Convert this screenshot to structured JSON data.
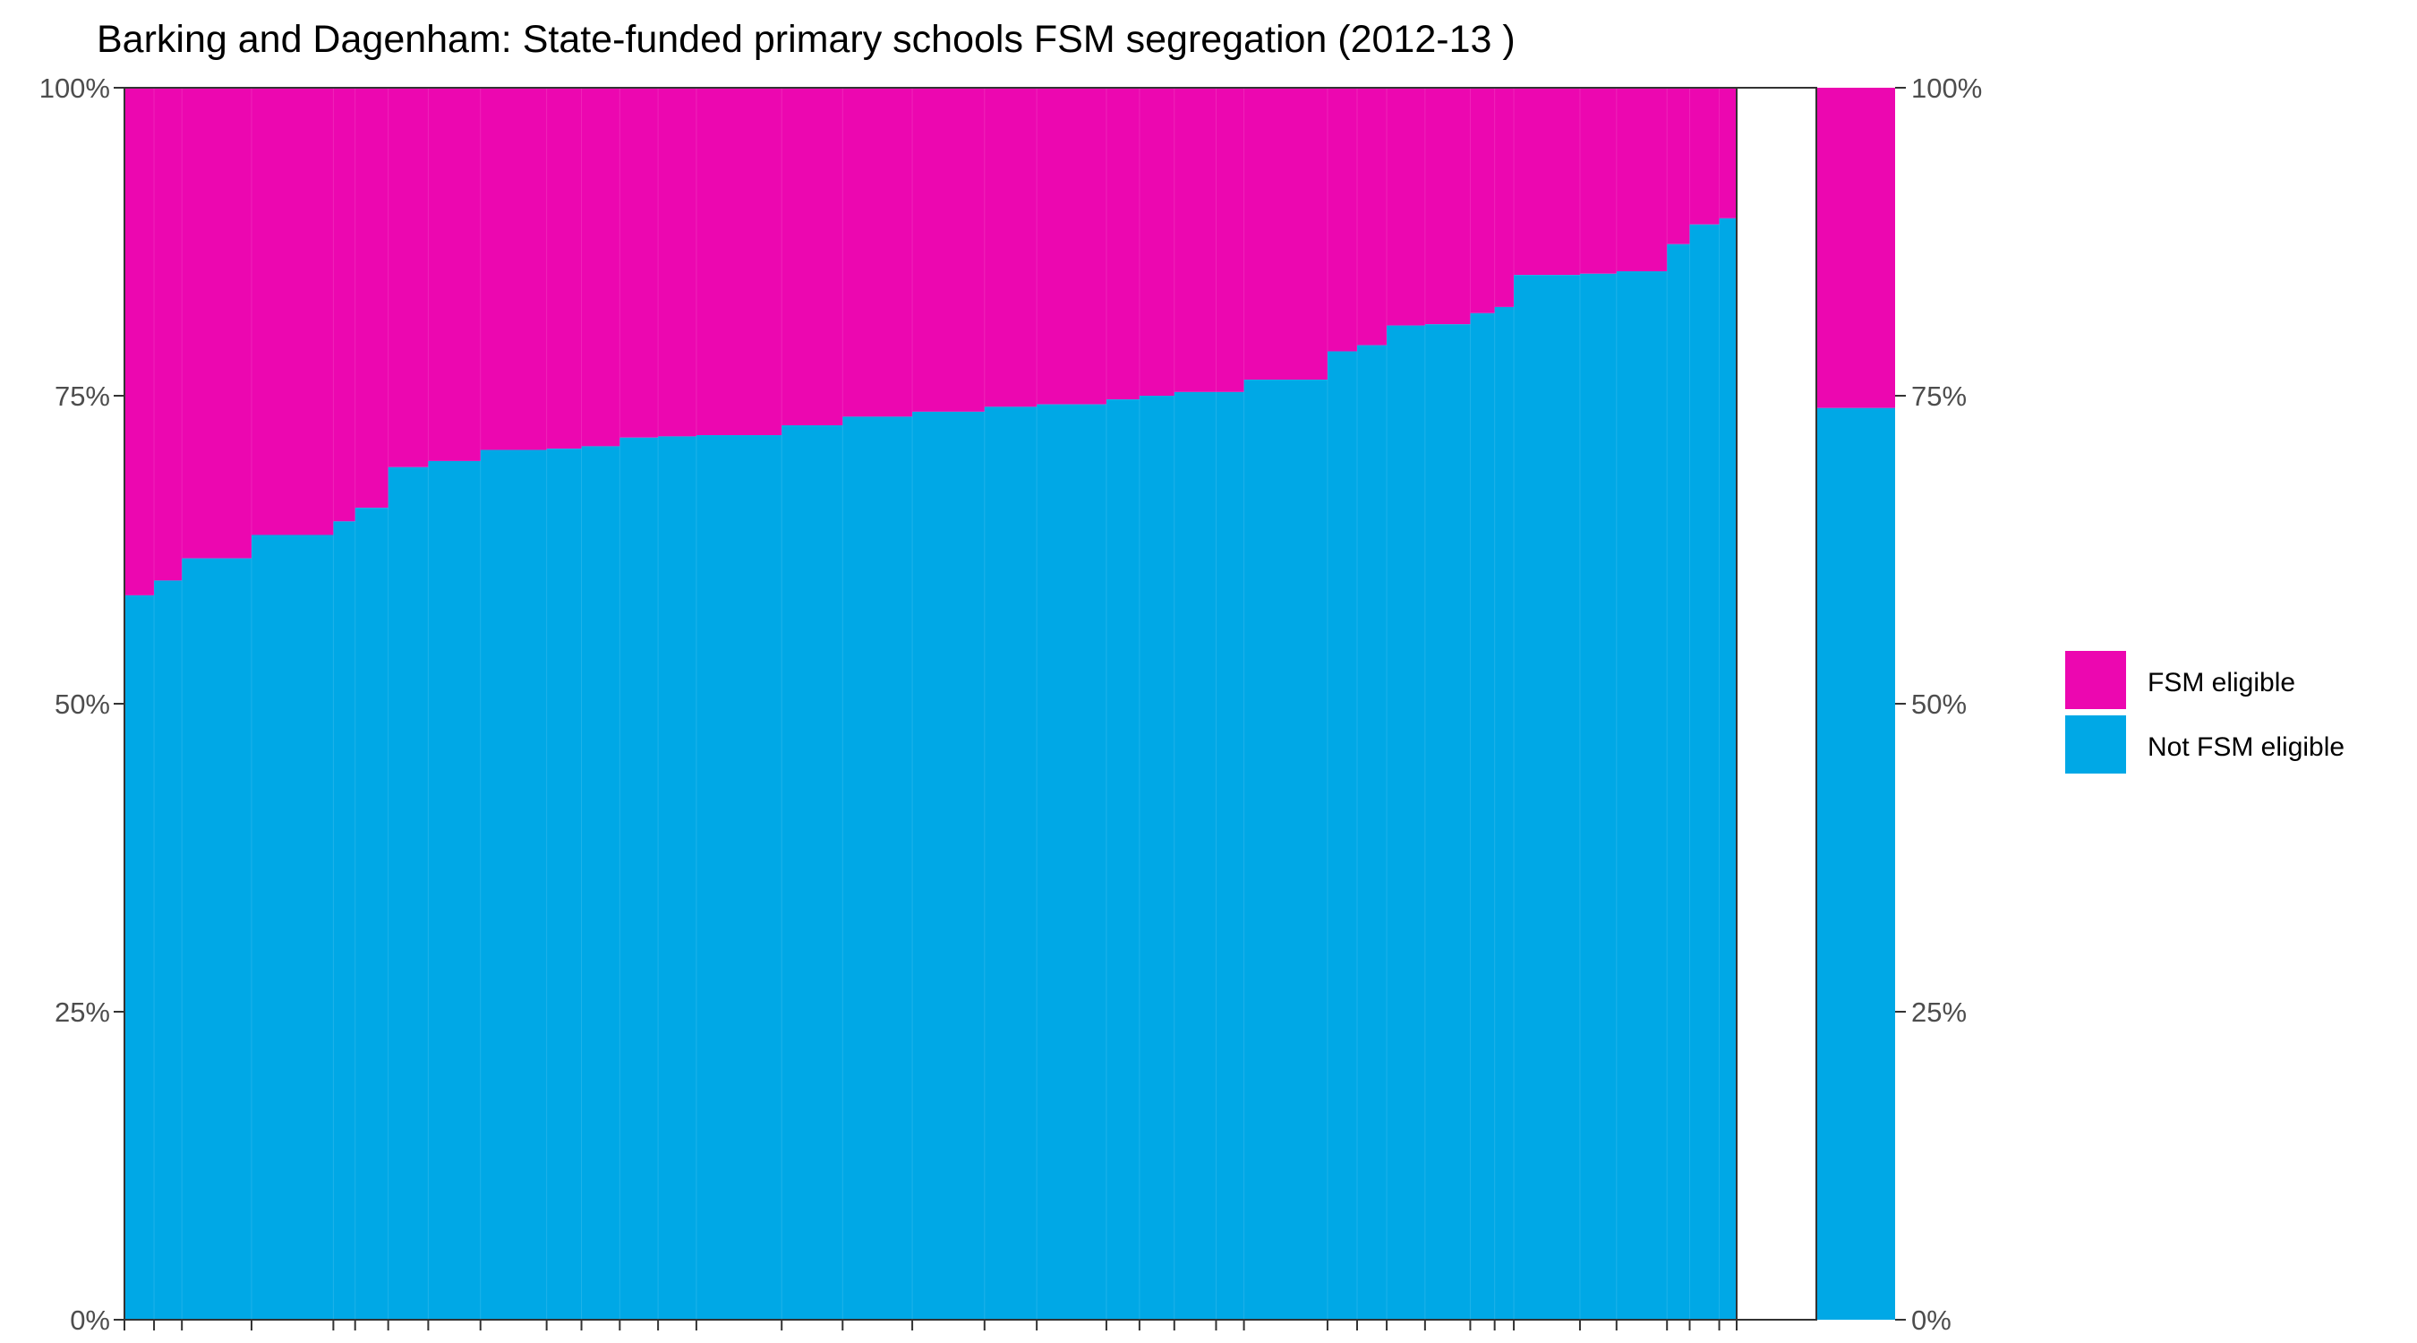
{
  "chart_data": {
    "type": "bar",
    "subtype": "variable-width stacked 100% bar (segregation chart)",
    "title": "Barking and Dagenham: State-funded primary schools FSM segregation (2012-13 )",
    "xlabel": "",
    "ylabel": "",
    "ylim": [
      0,
      1
    ],
    "y_ticks": [
      "0%",
      "25%",
      "50%",
      "75%",
      "100%"
    ],
    "y_axes": "left and right",
    "grid": false,
    "legend_position": "right",
    "colors": {
      "FSM eligible": "#EC07B0",
      "Not FSM eligible": "#00A8E6"
    },
    "series": [
      {
        "name": "Not FSM eligible",
        "values": [
          0.588,
          0.6,
          0.618,
          0.637,
          0.648,
          0.659,
          0.692,
          0.697,
          0.706,
          0.707,
          0.709,
          0.716,
          0.717,
          0.718,
          0.726,
          0.733,
          0.737,
          0.741,
          0.743,
          0.747,
          0.75,
          0.753,
          0.753,
          0.763,
          0.786,
          0.791,
          0.807,
          0.808,
          0.817,
          0.822,
          0.848,
          0.849,
          0.851,
          0.873,
          0.889,
          0.894
        ]
      },
      {
        "name": "FSM eligible",
        "values": [
          0.412,
          0.4,
          0.382,
          0.363,
          0.352,
          0.341,
          0.308,
          0.303,
          0.294,
          0.293,
          0.291,
          0.284,
          0.283,
          0.282,
          0.274,
          0.267,
          0.263,
          0.259,
          0.257,
          0.253,
          0.25,
          0.247,
          0.247,
          0.237,
          0.214,
          0.209,
          0.193,
          0.192,
          0.183,
          0.178,
          0.152,
          0.151,
          0.149,
          0.127,
          0.111,
          0.106
        ]
      }
    ],
    "bar_widths": [
      34,
      32,
      80,
      94,
      25,
      38,
      46,
      60,
      76,
      40,
      44,
      44,
      44,
      98,
      70,
      80,
      83,
      60,
      80,
      38,
      40,
      48,
      32,
      96,
      34,
      34,
      44,
      52,
      28,
      22,
      76,
      42,
      58,
      26,
      34,
      20
    ],
    "total_bar": {
      "label": "",
      "values": {
        "Not FSM eligible": 0.74,
        "FSM eligible": 0.26
      }
    }
  }
}
